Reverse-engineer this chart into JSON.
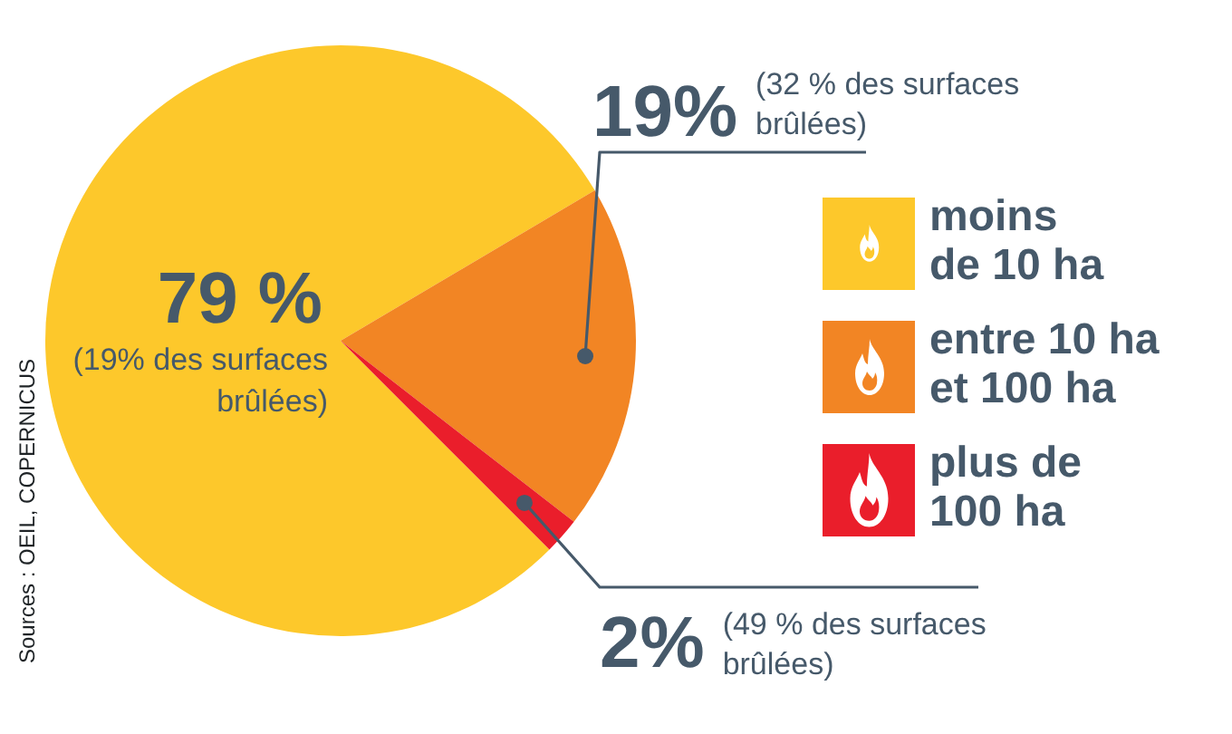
{
  "chart_data": {
    "type": "pie",
    "categories": [
      "moins de 10 ha",
      "entre 10 ha et 100 ha",
      "plus de 100 ha"
    ],
    "values": [
      79,
      19,
      2
    ],
    "colors": [
      "#fdc82b",
      "#f28524",
      "#ea1e2b"
    ],
    "value_labels": [
      "79 %",
      "19%",
      "2%"
    ],
    "annotations": [
      "(19% des surfaces brûlées)",
      "(32 % des surfaces brûlées)",
      "(49 % des surfaces brûlées)",
      "Sources : OEIL, COPERNICUS"
    ],
    "legend": "right"
  }
}
